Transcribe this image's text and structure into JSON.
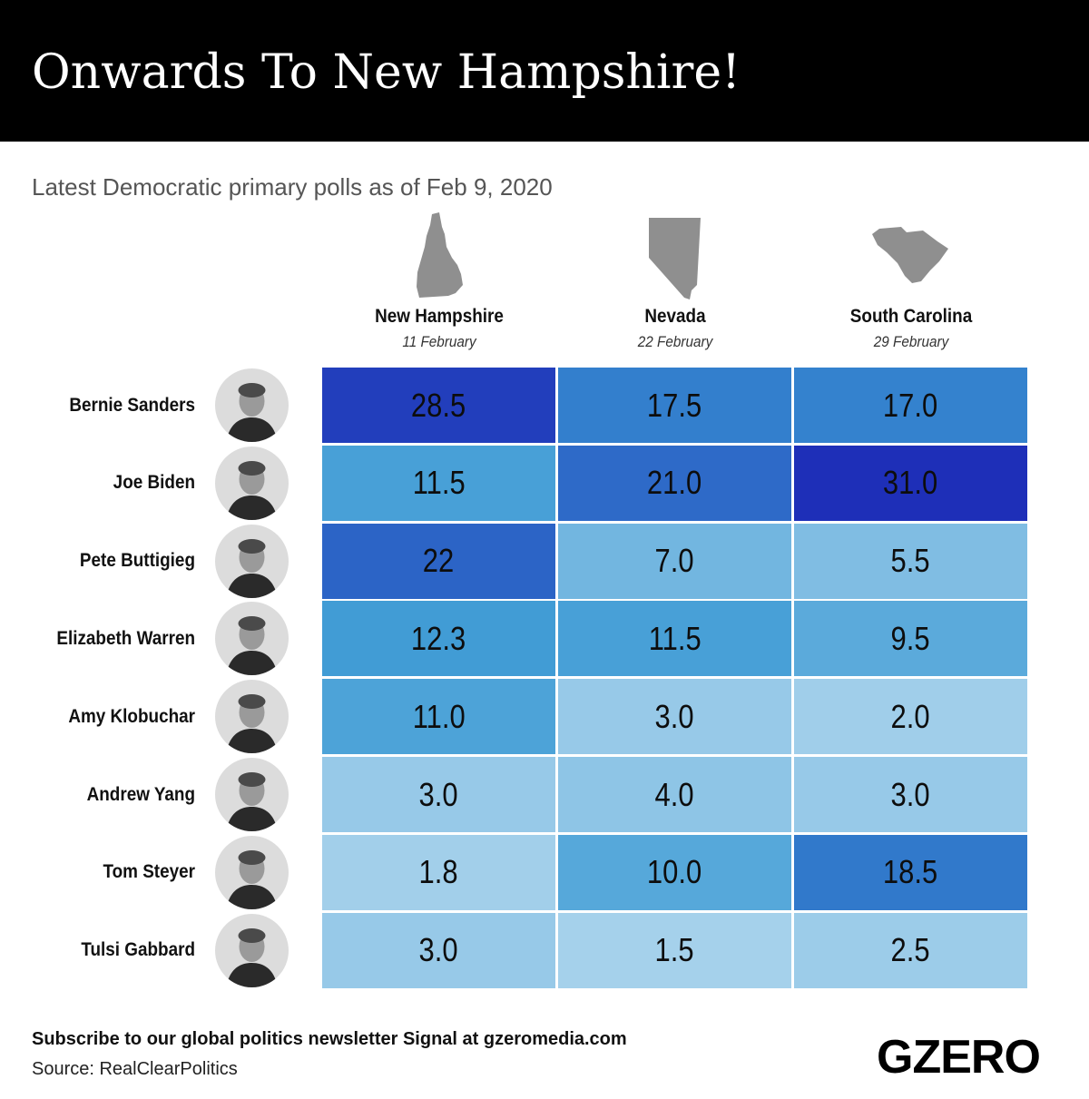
{
  "header": {
    "title": "Onwards To New Hampshire!",
    "subtitle": "Latest Democratic primary polls as of Feb 9, 2020"
  },
  "chart_data": {
    "type": "heatmap",
    "columns": [
      {
        "name": "New Hampshire",
        "date": "11 February",
        "icon": "new-hampshire-map-icon"
      },
      {
        "name": "Nevada",
        "date": "22 February",
        "icon": "nevada-map-icon"
      },
      {
        "name": "South Carolina",
        "date": "29 February",
        "icon": "south-carolina-map-icon"
      }
    ],
    "rows": [
      {
        "name": "Bernie Sanders",
        "values": [
          "28.5",
          "17.5",
          "17.0"
        ]
      },
      {
        "name": "Joe Biden",
        "values": [
          "11.5",
          "21.0",
          "31.0"
        ]
      },
      {
        "name": "Pete Buttigieg",
        "values": [
          "22",
          "7.0",
          "5.5"
        ]
      },
      {
        "name": "Elizabeth Warren",
        "values": [
          "12.3",
          "11.5",
          "9.5"
        ]
      },
      {
        "name": "Amy Klobuchar",
        "values": [
          "11.0",
          "3.0",
          "2.0"
        ]
      },
      {
        "name": "Andrew Yang",
        "values": [
          "3.0",
          "4.0",
          "3.0"
        ]
      },
      {
        "name": "Tom Steyer",
        "values": [
          "1.8",
          "10.0",
          "18.5"
        ]
      },
      {
        "name": "Tulsi Gabbard",
        "values": [
          "3.0",
          "1.5",
          "2.5"
        ]
      }
    ],
    "color_scale": {
      "low": "#b3d8ee",
      "mid": "#3a99d4",
      "high": "#1e2fb8"
    }
  },
  "footer": {
    "subscribe": "Subscribe to our global politics newsletter Signal at gzeromedia.com",
    "source": "Source: RealClearPolitics",
    "logo": "GZERO"
  },
  "colors": {
    "banner": "#000000",
    "map": "#8f8f8f",
    "avatar_bg": "#dcdcdc"
  }
}
